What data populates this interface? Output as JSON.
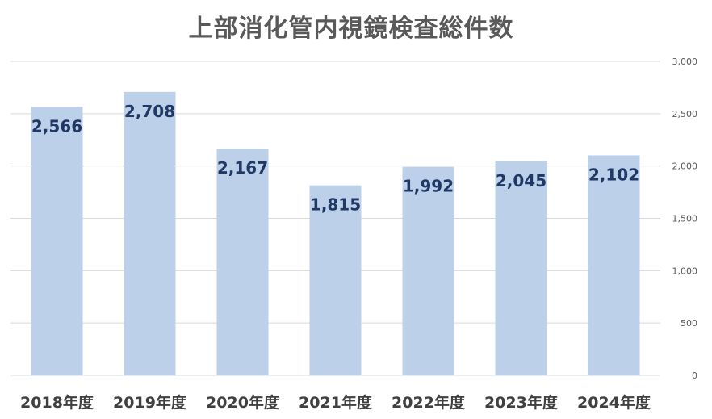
{
  "chart_data": {
    "type": "bar",
    "title": "上部消化管内視鏡検査総件数",
    "categories": [
      "2018年度",
      "2019年度",
      "2020年度",
      "2021年度",
      "2022年度",
      "2023年度",
      "2024年度"
    ],
    "values": [
      2566,
      2708,
      2167,
      1815,
      1992,
      2045,
      2102
    ],
    "data_labels": [
      "2,566",
      "2,708",
      "2,167",
      "1,815",
      "1,992",
      "2,045",
      "2,102"
    ],
    "ylim": [
      0,
      3000
    ],
    "y_ticks": [
      0,
      500,
      1000,
      1500,
      2000,
      2500,
      3000
    ],
    "y_tick_labels": [
      "0",
      "500",
      "1,000",
      "1,500",
      "2,000",
      "2,500",
      "3,000"
    ],
    "y_axis_side": "right",
    "grid": true,
    "bar_color": "#bdd0ea",
    "label_color": "#1f3864",
    "gridline_color": "#d9d9d9"
  }
}
